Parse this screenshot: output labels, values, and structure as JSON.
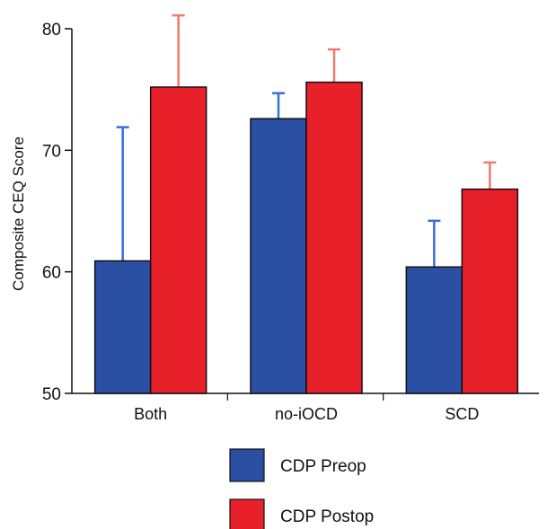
{
  "chart_data": {
    "type": "bar",
    "title": "",
    "xlabel": "",
    "ylabel": "Composite CEQ Score",
    "ylim": [
      50,
      80
    ],
    "yticks": [
      50,
      60,
      70,
      80
    ],
    "categories": [
      "Both",
      "no-iOCD",
      "SCD"
    ],
    "series": [
      {
        "name": "CDP Preop",
        "color": "#2a4fa3",
        "error_color": "#3a6fd8",
        "values": [
          60.9,
          72.6,
          60.4
        ],
        "error_upper": [
          71.9,
          74.7,
          64.2
        ]
      },
      {
        "name": "CDP Postop",
        "color": "#e8202a",
        "error_color": "#f07a6e",
        "values": [
          75.2,
          75.6,
          66.8
        ],
        "error_upper": [
          81.1,
          78.3,
          69.0
        ]
      }
    ],
    "grid": false,
    "legend_position": "bottom"
  }
}
